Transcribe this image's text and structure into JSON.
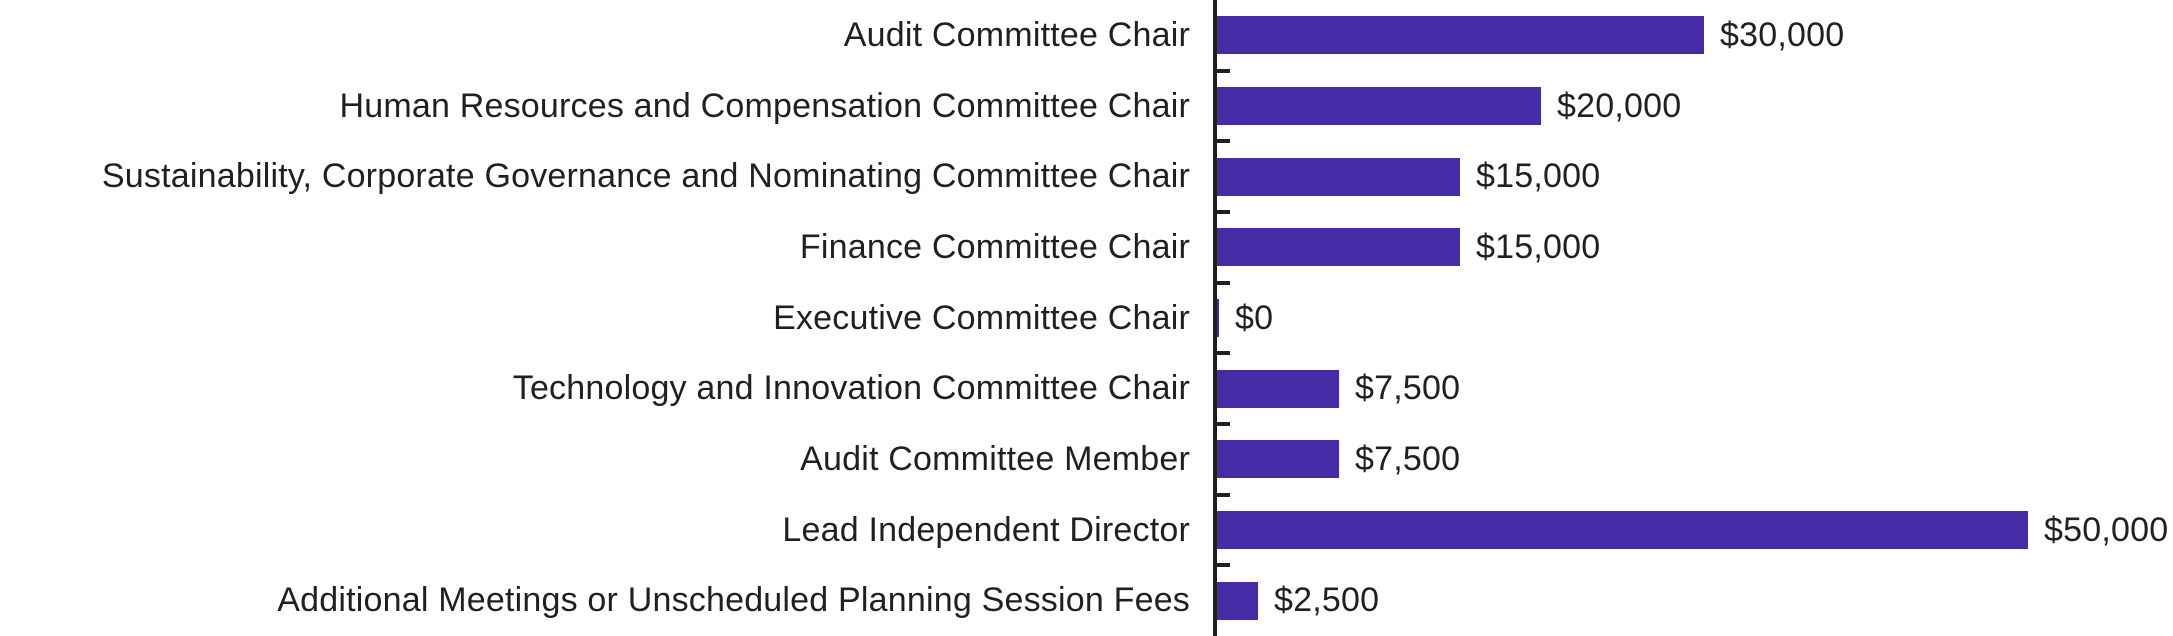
{
  "chart_data": {
    "type": "bar",
    "orientation": "horizontal",
    "title": "",
    "xlabel": "",
    "ylabel": "",
    "grid": false,
    "legend": false,
    "axis_side": "left",
    "xlim": [
      0,
      50000
    ],
    "categories": [
      "Audit Committee Chair",
      "Human Resources and Compensation Committee Chair",
      "Sustainability, Corporate Governance and Nominating Committee Chair",
      "Finance Committee Chair",
      "Executive Committee Chair",
      "Technology and Innovation Committee Chair",
      "Audit Committee Member",
      "Lead Independent Director",
      "Additional Meetings or Unscheduled Planning Session Fees"
    ],
    "values": [
      30000,
      20000,
      15000,
      15000,
      0,
      7500,
      7500,
      50000,
      2500
    ],
    "value_labels": [
      "$30,000",
      "$20,000",
      "$15,000",
      "$15,000",
      "$0",
      "$7,500",
      "$7,500",
      "$50,000",
      "$2,500"
    ],
    "colors": {
      "bar": "#452ba5",
      "axis": "#231f20",
      "text": "#231f20",
      "background": "#ffffff"
    }
  }
}
